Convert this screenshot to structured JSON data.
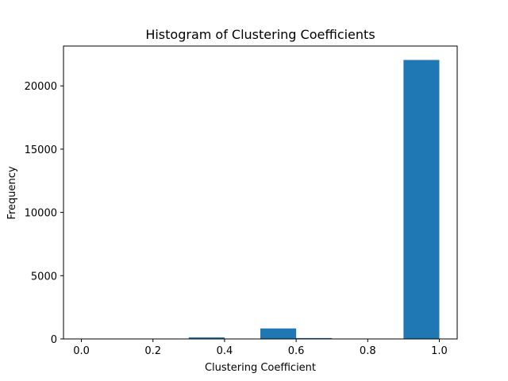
{
  "chart_data": {
    "type": "bar",
    "title": "Histogram of Clustering Coefficients",
    "xlabel": "Clustering Coefficient",
    "ylabel": "Frequency",
    "xlim": [
      -0.05,
      1.05
    ],
    "ylim": [
      0,
      23150
    ],
    "x_ticks": [
      0.0,
      0.2,
      0.4,
      0.6,
      0.8,
      1.0
    ],
    "x_tick_labels": [
      "0.0",
      "0.2",
      "0.4",
      "0.6",
      "0.8",
      "1.0"
    ],
    "y_ticks": [
      0,
      5000,
      10000,
      15000,
      20000
    ],
    "y_tick_labels": [
      "0",
      "5000",
      "10000",
      "15000",
      "20000"
    ],
    "bins": [
      {
        "x0": 0.0,
        "x1": 0.1,
        "value": 10
      },
      {
        "x0": 0.1,
        "x1": 0.2,
        "value": 5
      },
      {
        "x0": 0.2,
        "x1": 0.3,
        "value": 20
      },
      {
        "x0": 0.3,
        "x1": 0.4,
        "value": 120
      },
      {
        "x0": 0.4,
        "x1": 0.5,
        "value": 30
      },
      {
        "x0": 0.5,
        "x1": 0.6,
        "value": 830
      },
      {
        "x0": 0.6,
        "x1": 0.7,
        "value": 70
      },
      {
        "x0": 0.7,
        "x1": 0.8,
        "value": 20
      },
      {
        "x0": 0.8,
        "x1": 0.9,
        "value": 10
      },
      {
        "x0": 0.9,
        "x1": 1.0,
        "value": 22050
      }
    ],
    "bar_color": "#1f77b4",
    "grid": false,
    "legend": "none"
  }
}
